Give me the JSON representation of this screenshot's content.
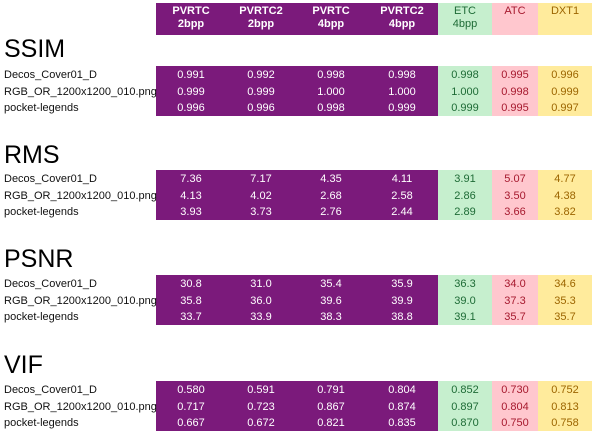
{
  "headers": [
    {
      "line1": "PVRTC",
      "line2": "2bpp"
    },
    {
      "line1": "PVRTC2",
      "line2": "2bpp"
    },
    {
      "line1": "PVRTC",
      "line2": "4bpp"
    },
    {
      "line1": "PVRTC2",
      "line2": "4bpp"
    },
    {
      "line1": "ETC",
      "line2": "4bpp"
    },
    {
      "line1": "ATC",
      "line2": ""
    },
    {
      "line1": "DXT1",
      "line2": ""
    }
  ],
  "colors": {
    "purple": "#7b1a7b",
    "etc": "#c6efce",
    "atc": "#ffc7ce",
    "dxt": "#ffeb9c"
  },
  "sections": [
    {
      "title": "SSIM",
      "rows": [
        {
          "label": "Decos_Cover01_D",
          "values": [
            "0.991",
            "0.992",
            "0.998",
            "0.998",
            "0.998",
            "0.995",
            "0.996"
          ]
        },
        {
          "label": "RGB_OR_1200x1200_010.png",
          "values": [
            "0.999",
            "0.999",
            "1.000",
            "1.000",
            "1.000",
            "0.998",
            "0.999"
          ]
        },
        {
          "label": "pocket-legends",
          "values": [
            "0.996",
            "0.996",
            "0.998",
            "0.999",
            "0.999",
            "0.995",
            "0.997"
          ]
        }
      ]
    },
    {
      "title": "RMS",
      "rows": [
        {
          "label": "Decos_Cover01_D",
          "values": [
            "7.36",
            "7.17",
            "4.35",
            "4.11",
            "3.91",
            "5.07",
            "4.77"
          ]
        },
        {
          "label": "RGB_OR_1200x1200_010.png",
          "values": [
            "4.13",
            "4.02",
            "2.68",
            "2.58",
            "2.86",
            "3.50",
            "4.38"
          ]
        },
        {
          "label": "pocket-legends",
          "values": [
            "3.93",
            "3.73",
            "2.76",
            "2.44",
            "2.89",
            "3.66",
            "3.82"
          ]
        }
      ]
    },
    {
      "title": "PSNR",
      "rows": [
        {
          "label": "Decos_Cover01_D",
          "values": [
            "30.8",
            "31.0",
            "35.4",
            "35.9",
            "36.3",
            "34.0",
            "34.6"
          ]
        },
        {
          "label": "RGB_OR_1200x1200_010.png",
          "values": [
            "35.8",
            "36.0",
            "39.6",
            "39.9",
            "39.0",
            "37.3",
            "35.3"
          ]
        },
        {
          "label": "pocket-legends",
          "values": [
            "33.7",
            "33.9",
            "38.3",
            "38.8",
            "39.1",
            "35.7",
            "35.7"
          ]
        }
      ]
    },
    {
      "title": "VIF",
      "rows": [
        {
          "label": "Decos_Cover01_D",
          "values": [
            "0.580",
            "0.591",
            "0.791",
            "0.804",
            "0.852",
            "0.730",
            "0.752"
          ]
        },
        {
          "label": "RGB_OR_1200x1200_010.png",
          "values": [
            "0.717",
            "0.723",
            "0.867",
            "0.874",
            "0.897",
            "0.804",
            "0.813"
          ]
        },
        {
          "label": "pocket-legends",
          "values": [
            "0.667",
            "0.672",
            "0.821",
            "0.835",
            "0.870",
            "0.750",
            "0.758"
          ]
        }
      ]
    }
  ]
}
